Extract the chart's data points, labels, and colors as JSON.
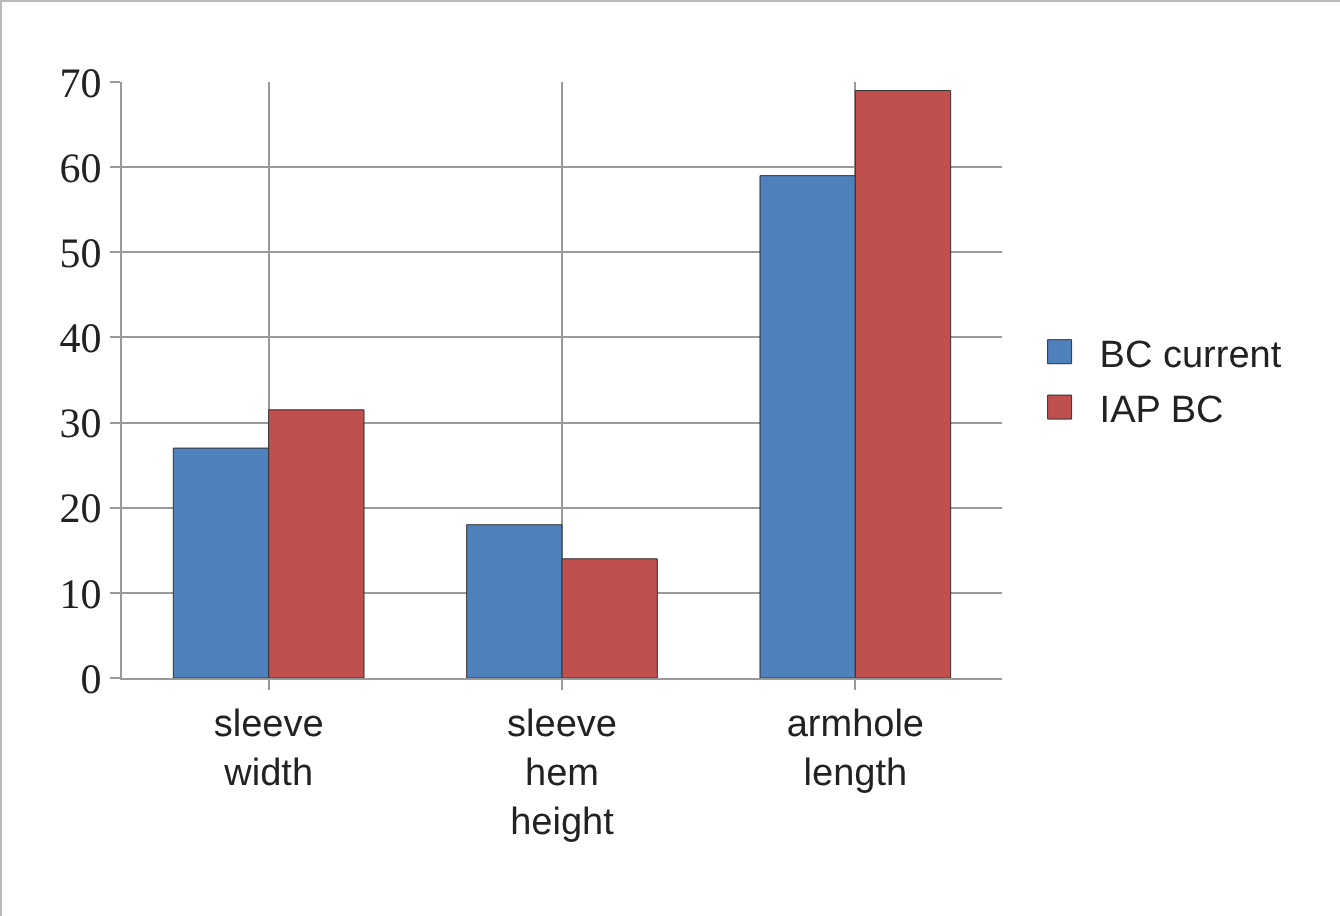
{
  "chart_data": {
    "type": "bar",
    "categories": [
      "sleeve width",
      "sleeve hem height",
      "armhole length"
    ],
    "series": [
      {
        "name": "BC current",
        "color": "#4f81bd",
        "values": [
          27,
          18,
          59
        ]
      },
      {
        "name": "IAP BC",
        "color": "#c0504d",
        "values": [
          31.5,
          14,
          69
        ]
      }
    ],
    "ylim": [
      0,
      70
    ],
    "yticks": [
      0,
      10,
      20,
      30,
      40,
      50,
      60,
      70
    ],
    "grid": true,
    "legend": "right"
  }
}
